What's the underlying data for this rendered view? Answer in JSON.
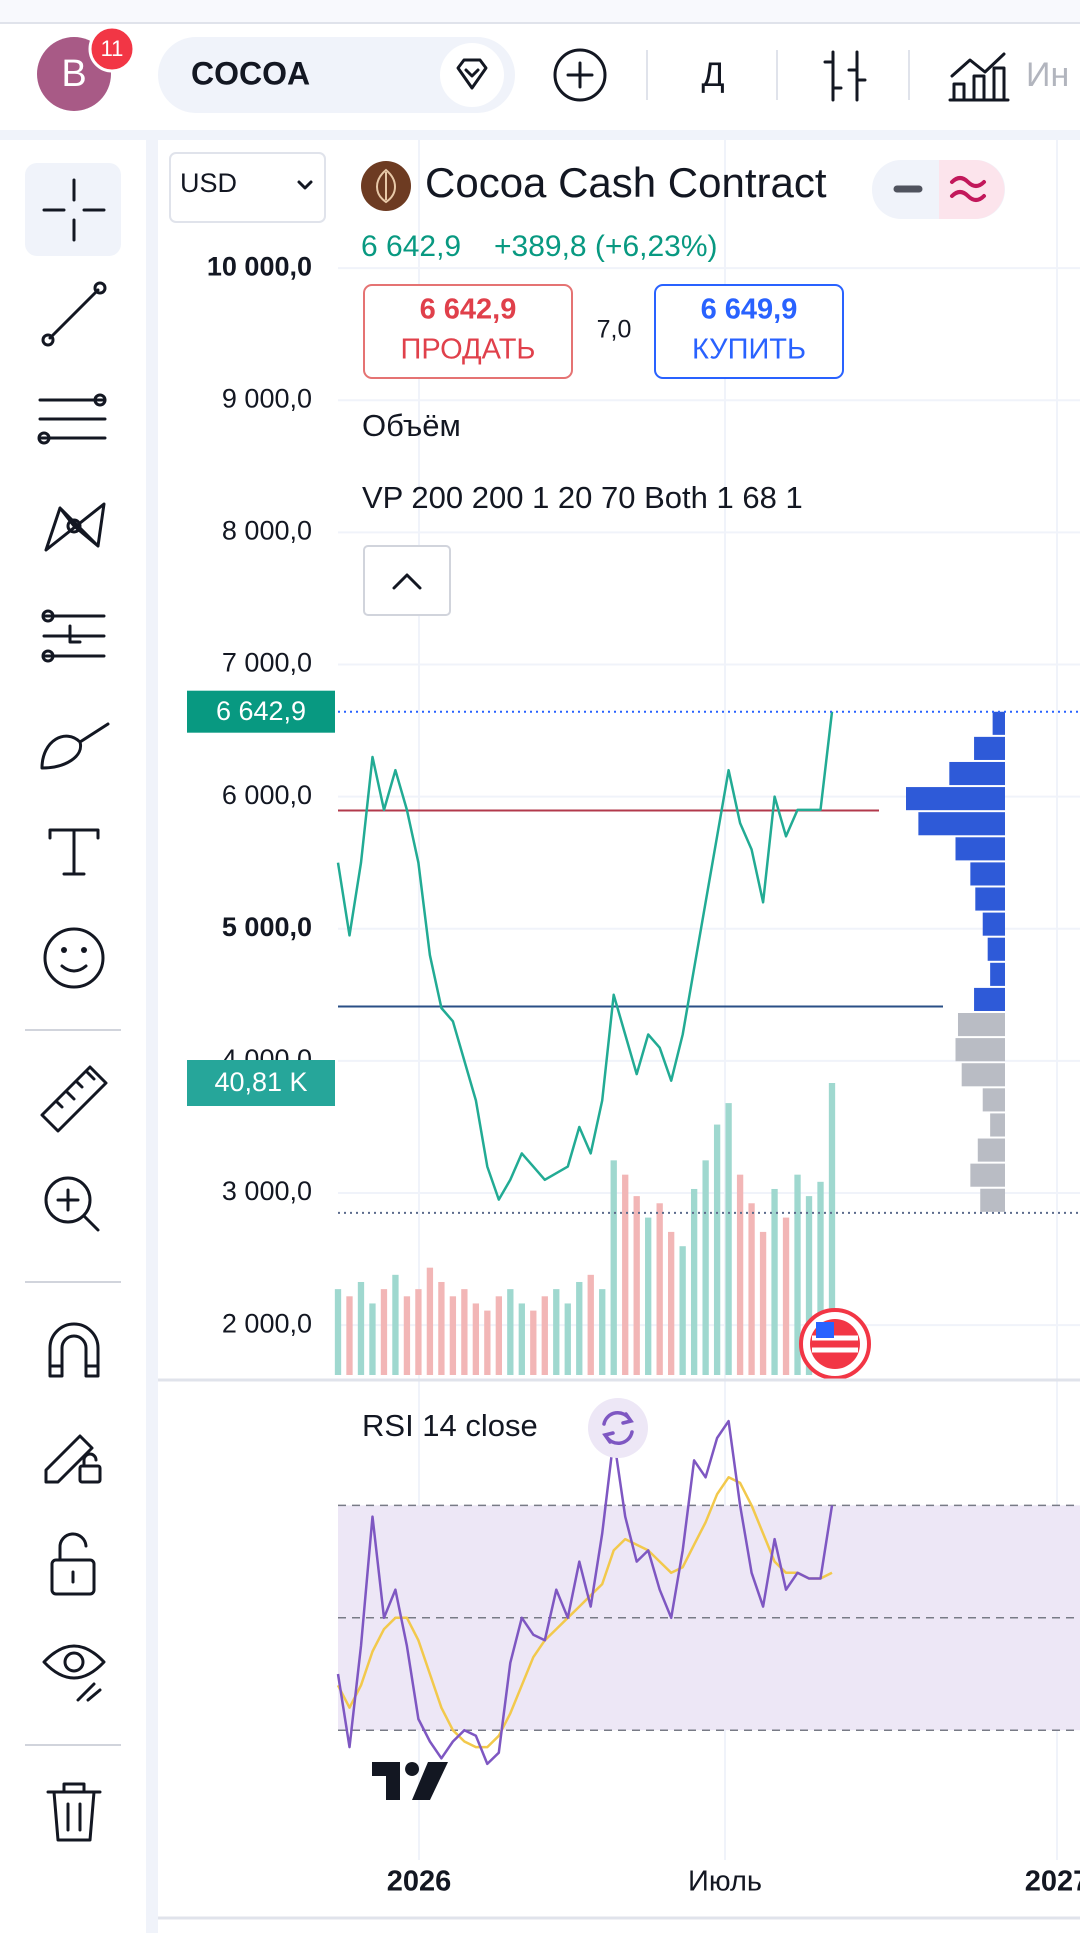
{
  "header": {
    "avatar": "B",
    "badge": "11",
    "symbol": "COCOA",
    "interval": "Д",
    "indicators": "Ин"
  },
  "quote": {
    "currency": "USD",
    "title": "Cocoa Cash Contract",
    "last": "6 642,9",
    "change": "+389,8 (+6,23%)",
    "sell_price": "6 642,9",
    "sell": "ПРОДАТЬ",
    "spread": "7,0",
    "buy_price": "6 649,9",
    "buy": "КУПИТЬ",
    "volume_legend": "Объём",
    "vp_legend": "VP 200 200 1 20 70 Both 1 68 1"
  },
  "chart_data": [
    {
      "type": "line",
      "color": "#22ab94",
      "values": [
        5500,
        4950,
        5500,
        6300,
        5900,
        6200,
        5900,
        5500,
        4800,
        4400,
        4300,
        4000,
        3700,
        3200,
        2950,
        3100,
        3300,
        3200,
        3100,
        3150,
        3200,
        3500,
        3300,
        3700,
        4500,
        4200,
        3900,
        4200,
        4100,
        3850,
        4200,
        4700,
        5200,
        5700,
        6200,
        5800,
        5600,
        5200,
        6000,
        5700,
        5900,
        5900,
        5900,
        6642.9
      ],
      "last_label": "6 642,9",
      "last_color": "#089981",
      "ylim": [
        1600,
        11000
      ],
      "yticks": [
        {
          "value": 2000,
          "label": "2 000,0"
        },
        {
          "value": 3000,
          "label": "3 000,0"
        },
        {
          "value": 4000,
          "label": "4 000,0"
        },
        {
          "value": 5000,
          "label": "5 000,0"
        },
        {
          "value": 6000,
          "label": "6 000,0"
        },
        {
          "value": 7000,
          "label": "7 000,0"
        },
        {
          "value": 8000,
          "label": "8 000,0"
        },
        {
          "value": 9000,
          "label": "9 000,0"
        },
        {
          "value": 10000,
          "label": "10 000,0"
        }
      ],
      "grid": true,
      "x_labels": [
        "2026",
        "Июль",
        "2027"
      ],
      "volume": {
        "values": [
          12,
          11,
          13,
          10,
          12,
          14,
          11,
          12,
          15,
          13,
          11,
          12,
          10,
          9,
          11,
          12,
          10,
          9,
          11,
          12,
          10,
          13,
          14,
          12,
          30,
          28,
          25,
          22,
          24,
          20,
          18,
          26,
          30,
          35,
          38,
          28,
          24,
          20,
          26,
          22,
          28,
          25,
          27,
          40.81
        ],
        "label": "40,81 K",
        "up_color": "#9fd8cf",
        "down_color": "#f2b6b6",
        "label_color": "#26a69a"
      },
      "levels": [
        {
          "price": 5895,
          "color": "#b2394b"
        },
        {
          "price": 4412,
          "color": "#2a4f86"
        }
      ],
      "profile": {
        "bins": [
          2850,
          3040,
          3230,
          3420,
          3610,
          3800,
          3990,
          4180,
          4370,
          4560,
          4750,
          4940,
          5130,
          5320,
          5510,
          5700,
          5890,
          6080,
          6270,
          6460,
          6650
        ],
        "values": [
          20,
          28,
          22,
          12,
          18,
          35,
          40,
          38,
          25,
          12,
          14,
          18,
          24,
          28,
          40,
          70,
          80,
          45,
          25,
          10
        ],
        "value_area_low": 4370,
        "color": "#2e5ad8",
        "color_outside": "#b9bcc4"
      }
    },
    {
      "type": "line",
      "title": "RSI 14 close",
      "series": [
        {
          "color": "#7e57c2",
          "values": [
            40,
            27,
            45,
            68,
            50,
            55,
            45,
            32,
            28,
            25,
            28,
            30,
            29,
            24,
            26,
            42,
            50,
            47,
            46,
            55,
            50,
            60,
            52,
            65,
            82,
            68,
            60,
            62,
            55,
            50,
            62,
            78,
            75,
            82,
            85,
            70,
            58,
            52,
            64,
            55,
            58,
            57,
            57,
            70
          ]
        },
        {
          "color": "#f2c94c",
          "values": [
            38,
            34,
            38,
            44,
            48,
            50,
            50,
            46,
            40,
            34,
            30,
            28,
            27,
            27,
            29,
            33,
            38,
            43,
            46,
            48,
            50,
            52,
            54,
            56,
            62,
            64,
            63,
            62,
            60,
            58,
            59,
            63,
            67,
            72,
            75,
            74,
            70,
            65,
            60,
            58,
            58,
            57,
            57,
            58
          ]
        }
      ],
      "ylim": [
        11,
        90
      ],
      "bands": [
        30,
        50,
        70
      ],
      "band_color": "#ede7f6"
    }
  ]
}
